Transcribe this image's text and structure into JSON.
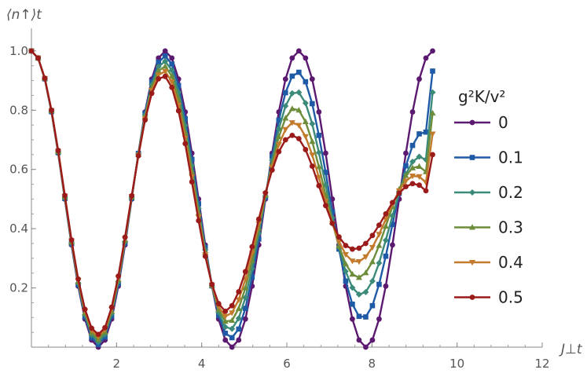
{
  "chart_data": {
    "type": "line",
    "ylabel": "⟨n↑⟩t",
    "xlabel": "J⊥t",
    "xlim": [
      0,
      12
    ],
    "ylim": [
      0,
      1.05
    ],
    "x_ticks": [
      2,
      4,
      6,
      8,
      10,
      12
    ],
    "y_ticks": [
      0.2,
      0.4,
      0.6,
      0.8,
      1.0
    ],
    "x_tick_labels": [
      "2",
      "4",
      "6",
      "8",
      "10",
      "12"
    ],
    "y_tick_labels": [
      "0.2",
      "0.4",
      "0.6",
      "0.8",
      "1.0"
    ],
    "legend": {
      "title": "g²K/v²",
      "placement": "right"
    },
    "x": [
      0.0,
      0.157,
      0.314,
      0.471,
      0.628,
      0.785,
      0.942,
      1.099,
      1.257,
      1.414,
      1.571,
      1.728,
      1.885,
      2.042,
      2.199,
      2.356,
      2.513,
      2.67,
      2.827,
      2.985,
      3.142,
      3.299,
      3.456,
      3.613,
      3.77,
      3.927,
      4.084,
      4.241,
      4.398,
      4.555,
      4.712,
      4.869,
      5.027,
      5.184,
      5.341,
      5.498,
      5.655,
      5.812,
      5.969,
      6.126,
      6.283,
      6.44,
      6.597,
      6.754,
      6.912,
      7.069,
      7.226,
      7.383,
      7.54,
      7.697,
      7.854,
      8.011,
      8.168,
      8.325,
      8.482,
      8.639,
      8.796,
      8.954,
      9.111,
      9.268,
      9.425
    ],
    "series": [
      {
        "name": "0",
        "color": "#5b1a6f",
        "marker": "circle",
        "values": [
          1.0,
          0.976,
          0.905,
          0.794,
          0.655,
          0.5,
          0.345,
          0.206,
          0.095,
          0.024,
          0.0,
          0.024,
          0.095,
          0.206,
          0.345,
          0.5,
          0.655,
          0.794,
          0.905,
          0.976,
          1.0,
          0.976,
          0.905,
          0.794,
          0.655,
          0.5,
          0.345,
          0.206,
          0.095,
          0.024,
          0.0,
          0.024,
          0.095,
          0.206,
          0.345,
          0.5,
          0.655,
          0.794,
          0.905,
          0.976,
          1.0,
          0.976,
          0.905,
          0.794,
          0.655,
          0.5,
          0.345,
          0.206,
          0.095,
          0.024,
          0.0,
          0.024,
          0.095,
          0.206,
          0.345,
          0.5,
          0.655,
          0.794,
          0.905,
          0.976,
          1.0
        ]
      },
      {
        "name": "0.1",
        "color": "#1f5aa6",
        "marker": "square",
        "values": [
          1.0,
          0.976,
          0.906,
          0.795,
          0.657,
          0.502,
          0.349,
          0.211,
          0.102,
          0.032,
          0.009,
          0.034,
          0.104,
          0.214,
          0.351,
          0.503,
          0.654,
          0.79,
          0.896,
          0.962,
          0.983,
          0.956,
          0.883,
          0.771,
          0.634,
          0.484,
          0.337,
          0.207,
          0.107,
          0.047,
          0.032,
          0.061,
          0.131,
          0.236,
          0.365,
          0.505,
          0.644,
          0.766,
          0.859,
          0.915,
          0.928,
          0.896,
          0.822,
          0.715,
          0.59,
          0.457,
          0.331,
          0.223,
          0.145,
          0.104,
          0.102,
          0.14,
          0.212,
          0.307,
          0.414,
          0.519,
          0.612,
          0.681,
          0.72,
          0.726,
          0.932
        ]
      },
      {
        "name": "0.2",
        "color": "#3b8a7a",
        "marker": "diamond",
        "values": [
          1.0,
          0.976,
          0.906,
          0.796,
          0.658,
          0.505,
          0.352,
          0.216,
          0.109,
          0.041,
          0.018,
          0.043,
          0.113,
          0.221,
          0.356,
          0.505,
          0.652,
          0.784,
          0.886,
          0.947,
          0.965,
          0.935,
          0.86,
          0.748,
          0.613,
          0.468,
          0.328,
          0.207,
          0.117,
          0.068,
          0.062,
          0.097,
          0.167,
          0.265,
          0.384,
          0.509,
          0.631,
          0.737,
          0.814,
          0.857,
          0.86,
          0.824,
          0.754,
          0.657,
          0.548,
          0.437,
          0.337,
          0.256,
          0.201,
          0.178,
          0.186,
          0.223,
          0.284,
          0.361,
          0.443,
          0.52,
          0.584,
          0.626,
          0.643,
          0.633,
          0.86
        ]
      },
      {
        "name": "0.3",
        "color": "#6d8d3a",
        "marker": "triangle",
        "values": [
          1.0,
          0.976,
          0.907,
          0.798,
          0.66,
          0.507,
          0.355,
          0.221,
          0.116,
          0.049,
          0.026,
          0.051,
          0.121,
          0.228,
          0.361,
          0.507,
          0.65,
          0.778,
          0.876,
          0.933,
          0.948,
          0.915,
          0.838,
          0.726,
          0.593,
          0.453,
          0.32,
          0.208,
          0.127,
          0.087,
          0.09,
          0.13,
          0.2,
          0.292,
          0.401,
          0.513,
          0.619,
          0.71,
          0.773,
          0.805,
          0.8,
          0.761,
          0.694,
          0.609,
          0.514,
          0.422,
          0.341,
          0.281,
          0.246,
          0.235,
          0.251,
          0.288,
          0.343,
          0.408,
          0.474,
          0.533,
          0.579,
          0.605,
          0.61,
          0.592,
          0.79
        ]
      },
      {
        "name": "0.4",
        "color": "#c27a2c",
        "marker": "triangle-down",
        "values": [
          1.0,
          0.976,
          0.907,
          0.799,
          0.662,
          0.51,
          0.359,
          0.226,
          0.122,
          0.057,
          0.035,
          0.059,
          0.128,
          0.234,
          0.366,
          0.509,
          0.648,
          0.772,
          0.867,
          0.919,
          0.931,
          0.896,
          0.817,
          0.706,
          0.575,
          0.439,
          0.313,
          0.21,
          0.137,
          0.104,
          0.116,
          0.16,
          0.229,
          0.317,
          0.417,
          0.517,
          0.608,
          0.684,
          0.735,
          0.758,
          0.749,
          0.711,
          0.649,
          0.573,
          0.493,
          0.418,
          0.356,
          0.313,
          0.291,
          0.289,
          0.305,
          0.337,
          0.381,
          0.432,
          0.483,
          0.528,
          0.561,
          0.578,
          0.576,
          0.556,
          0.72
        ]
      },
      {
        "name": "0.5",
        "color": "#9b1b1b",
        "marker": "circle",
        "values": [
          1.0,
          0.976,
          0.908,
          0.8,
          0.664,
          0.512,
          0.362,
          0.23,
          0.128,
          0.064,
          0.043,
          0.066,
          0.135,
          0.24,
          0.371,
          0.511,
          0.646,
          0.767,
          0.857,
          0.906,
          0.914,
          0.877,
          0.798,
          0.687,
          0.558,
          0.427,
          0.307,
          0.212,
          0.147,
          0.121,
          0.14,
          0.187,
          0.255,
          0.339,
          0.432,
          0.521,
          0.598,
          0.66,
          0.7,
          0.715,
          0.704,
          0.667,
          0.611,
          0.545,
          0.478,
          0.418,
          0.372,
          0.343,
          0.331,
          0.334,
          0.35,
          0.377,
          0.412,
          0.45,
          0.488,
          0.52,
          0.542,
          0.552,
          0.547,
          0.528,
          0.65
        ]
      }
    ]
  }
}
